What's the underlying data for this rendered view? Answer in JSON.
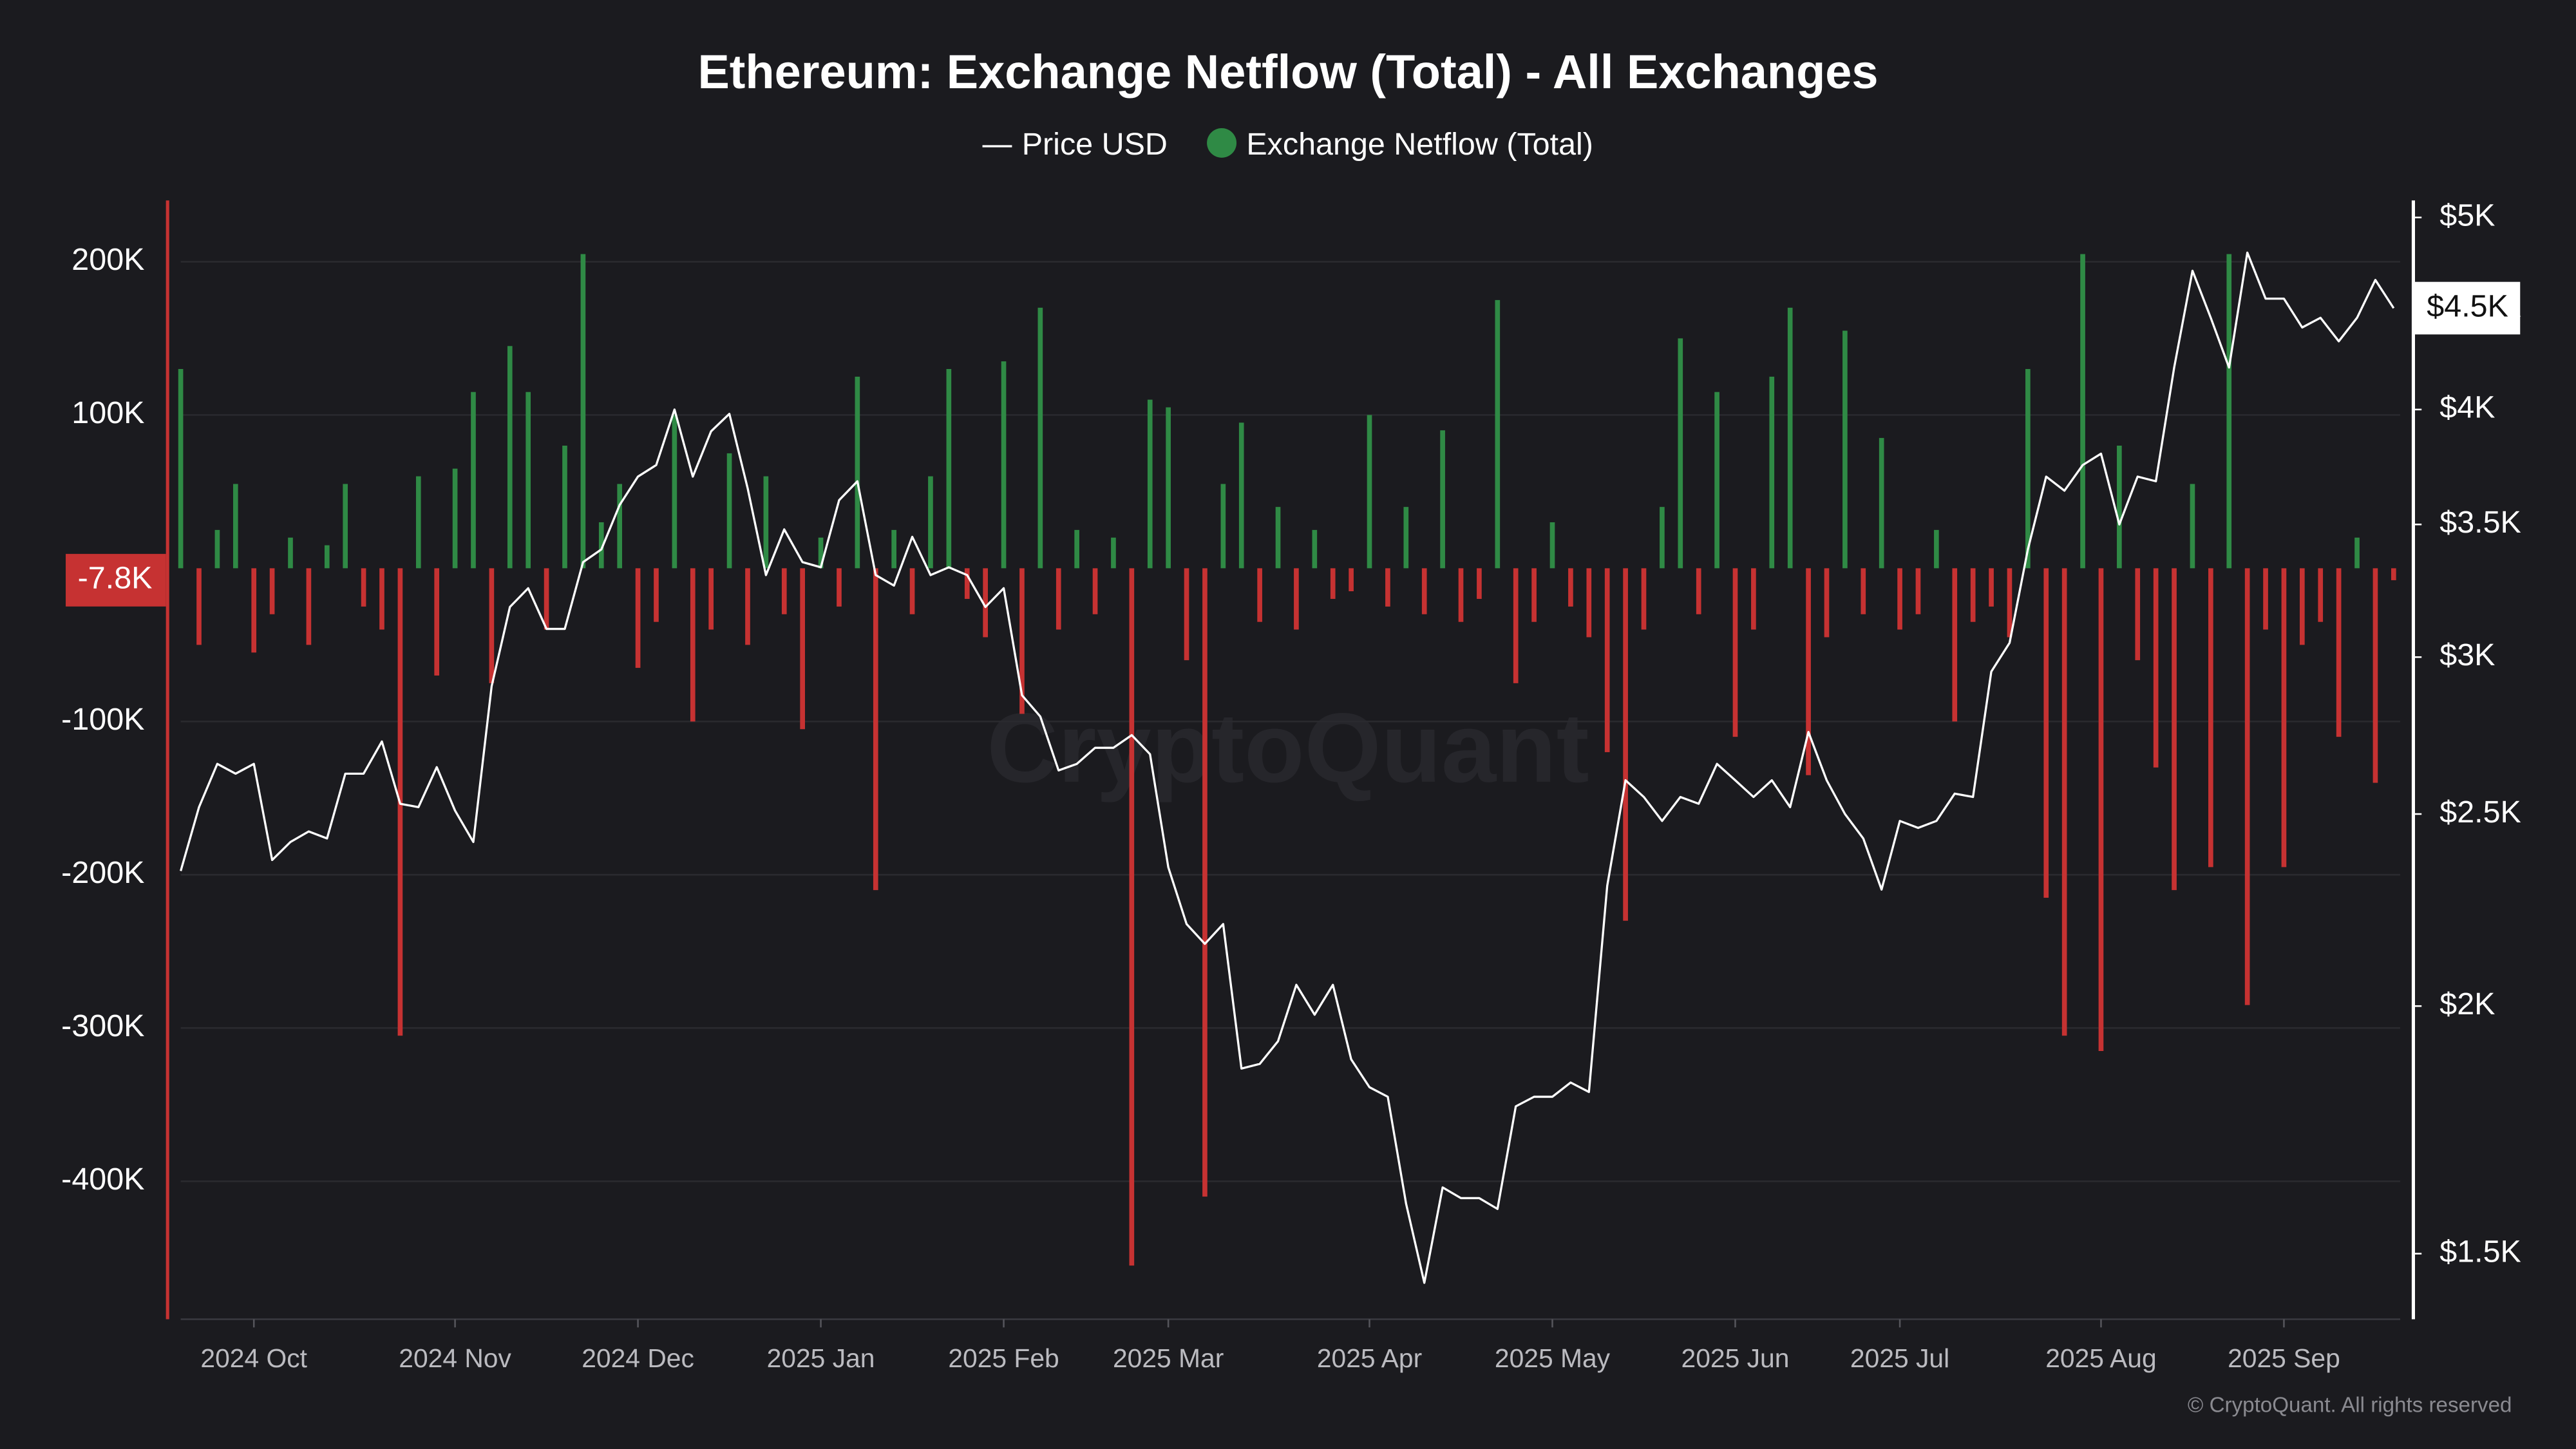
{
  "chart_data": {
    "type": "bar",
    "title": "Ethereum: Exchange Netflow (Total) - All Exchanges",
    "watermark": "CryptoQuant",
    "copyright": "© CryptoQuant. All rights reserved",
    "categories": [
      null,
      null,
      null,
      null,
      "2024 Oct",
      null,
      null,
      null,
      null,
      null,
      null,
      null,
      null,
      null,
      null,
      "2024 Nov",
      null,
      null,
      null,
      null,
      null,
      null,
      null,
      null,
      null,
      "2024 Dec",
      null,
      null,
      null,
      null,
      null,
      null,
      null,
      null,
      null,
      "2025 Jan",
      null,
      null,
      null,
      null,
      null,
      null,
      null,
      null,
      null,
      "2025 Feb",
      null,
      null,
      null,
      null,
      null,
      null,
      null,
      null,
      "2025 Mar",
      null,
      null,
      null,
      null,
      null,
      null,
      null,
      null,
      null,
      null,
      "2025 Apr",
      null,
      null,
      null,
      null,
      null,
      null,
      null,
      null,
      null,
      "2025 May",
      null,
      null,
      null,
      null,
      null,
      null,
      null,
      null,
      null,
      "2025 Jun",
      null,
      null,
      null,
      null,
      null,
      null,
      null,
      null,
      "2025 Jul",
      null,
      null,
      null,
      null,
      null,
      null,
      null,
      null,
      null,
      null,
      "2025 Aug",
      null,
      null,
      null,
      null,
      null,
      null,
      null,
      null,
      null,
      "2025 Sep",
      null,
      null,
      null,
      null,
      null,
      null
    ],
    "series": [
      {
        "name": "Price USD",
        "type": "line",
        "axis": "y2",
        "color": "#ffffff",
        "values": [
          2340,
          2520,
          2650,
          2620,
          2650,
          2370,
          2420,
          2450,
          2430,
          2620,
          2620,
          2720,
          2530,
          2520,
          2640,
          2510,
          2420,
          2900,
          3180,
          3250,
          3100,
          3100,
          3350,
          3400,
          3580,
          3700,
          3750,
          4000,
          3700,
          3900,
          3980,
          3650,
          3300,
          3480,
          3350,
          3330,
          3600,
          3680,
          3300,
          3260,
          3450,
          3300,
          3330,
          3300,
          3180,
          3250,
          2870,
          2800,
          2630,
          2650,
          2700,
          2700,
          2740,
          2680,
          2350,
          2200,
          2150,
          2200,
          1860,
          1870,
          1920,
          2050,
          1980,
          2050,
          1880,
          1820,
          1800,
          1590,
          1450,
          1620,
          1600,
          1600,
          1580,
          1780,
          1800,
          1800,
          1830,
          1810,
          2300,
          2600,
          2550,
          2480,
          2550,
          2530,
          2650,
          2600,
          2550,
          2600,
          2520,
          2750,
          2600,
          2500,
          2430,
          2290,
          2480,
          2460,
          2480,
          2560,
          2550,
          2950,
          3050,
          3400,
          3700,
          3640,
          3750,
          3800,
          3500,
          3700,
          3680,
          4200,
          4700,
          4450,
          4200,
          4800,
          4550,
          4550,
          4400,
          4450,
          4330,
          4450,
          4650,
          4500
        ],
        "last_label": {
          "value": 4500,
          "label": "$4.5K"
        }
      },
      {
        "name": "Exchange Netflow (Total)",
        "type": "bar",
        "color": "#2f8a45",
        "negative_color": "#c63232",
        "values": [
          130000,
          -50000,
          25000,
          55000,
          -55000,
          -30000,
          20000,
          -50000,
          15000,
          55000,
          -25000,
          -40000,
          -305000,
          60000,
          -70000,
          65000,
          115000,
          -75000,
          145000,
          115000,
          -40000,
          80000,
          205000,
          30000,
          55000,
          -65000,
          -35000,
          100000,
          -100000,
          -40000,
          75000,
          -50000,
          60000,
          -30000,
          -105000,
          20000,
          -25000,
          125000,
          -210000,
          25000,
          -30000,
          60000,
          130000,
          -20000,
          -45000,
          135000,
          -95000,
          170000,
          -40000,
          25000,
          -30000,
          20000,
          -455000,
          110000,
          105000,
          -60000,
          -410000,
          55000,
          95000,
          -35000,
          40000,
          -40000,
          25000,
          -20000,
          -15000,
          100000,
          -25000,
          40000,
          -30000,
          90000,
          -35000,
          -20000,
          175000,
          -75000,
          -35000,
          30000,
          -25000,
          -45000,
          -120000,
          -230000,
          -40000,
          40000,
          150000,
          -30000,
          115000,
          -110000,
          -40000,
          125000,
          170000,
          -135000,
          -45000,
          155000,
          -30000,
          85000,
          -40000,
          -30000,
          25000,
          -100000,
          -35000,
          -25000,
          -45000,
          130000,
          -215000,
          -305000,
          205000,
          -315000,
          80000,
          -60000,
          -130000,
          -210000,
          55000,
          -195000,
          205000,
          -285000,
          -40000,
          -195000,
          -50000,
          -35000,
          -110000,
          20000,
          -140000,
          -7800
        ],
        "last_label": {
          "value": -7800,
          "label": "-7.8K"
        }
      }
    ],
    "ylim": [
      -490000,
      240000
    ],
    "yticks": [
      {
        "value": 200000,
        "label": "200K"
      },
      {
        "value": 100000,
        "label": "100K"
      },
      {
        "value": -100000,
        "label": "-100K"
      },
      {
        "value": -200000,
        "label": "-200K"
      },
      {
        "value": -300000,
        "label": "-300K"
      },
      {
        "value": -400000,
        "label": "-400K"
      }
    ],
    "y2lim": [
      1390,
      5100
    ],
    "y2scale": "log",
    "y2ticks": [
      {
        "value": 5000,
        "label": "$5K"
      },
      {
        "value": 4500,
        "label": "$4.5K"
      },
      {
        "value": 4000,
        "label": "$4K"
      },
      {
        "value": 3500,
        "label": "$3.5K"
      },
      {
        "value": 3000,
        "label": "$3K"
      },
      {
        "value": 2500,
        "label": "$2.5K"
      },
      {
        "value": 2000,
        "label": "$2K"
      },
      {
        "value": 1500,
        "label": "$1.5K"
      }
    ],
    "grid": true
  }
}
